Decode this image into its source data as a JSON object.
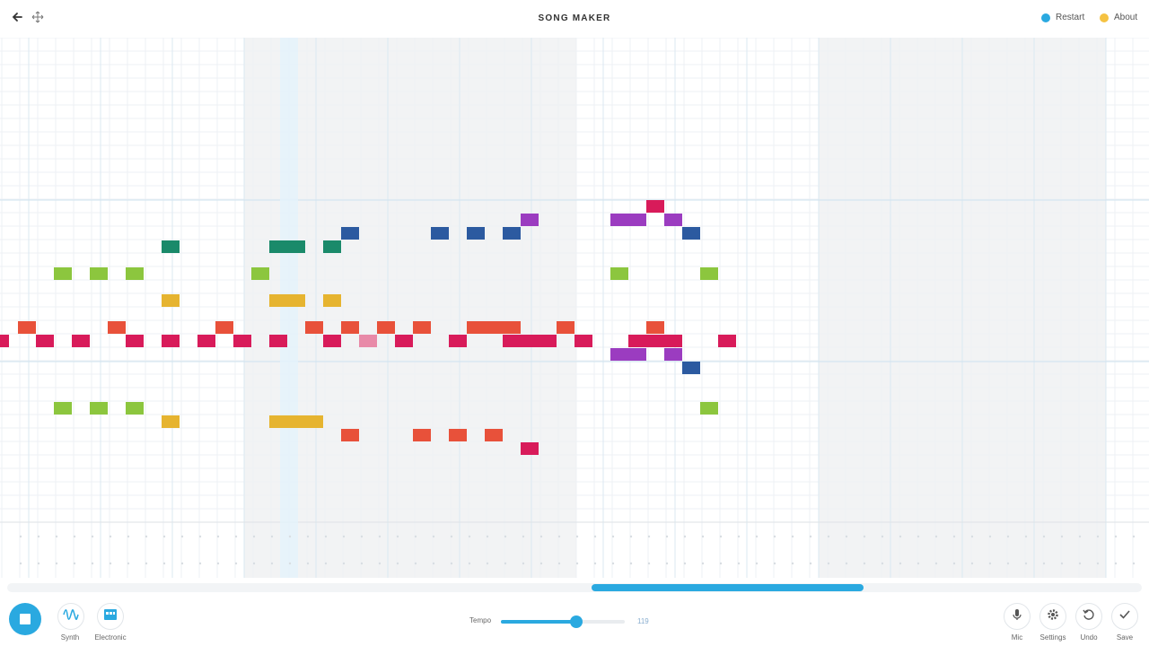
{
  "app": {
    "title": "SONG MAKER"
  },
  "topbar": {
    "restart_label": "Restart",
    "about_label": "About",
    "restart_color": "#2aa9e0",
    "about_color": "#f5c242"
  },
  "toolbar": {
    "instrument_label": "Synth",
    "percussion_label": "Electronic",
    "tempo_label": "Tempo",
    "tempo_value": "119",
    "tempo_fraction": 0.61,
    "mic_label": "Mic",
    "settings_label": "Settings",
    "undo_label": "Undo",
    "save_label": "Save"
  },
  "scroll": {
    "fraction_start": 0.515,
    "fraction_visible": 0.24
  },
  "playhead_column": 16,
  "melody_notes": [
    {
      "col": 0,
      "row": 11,
      "color": "#d81b5a"
    },
    {
      "col": 1,
      "row": 10,
      "color": "#e8513a"
    },
    {
      "col": 2,
      "row": 11,
      "color": "#d81b5a"
    },
    {
      "col": 3,
      "row": 6,
      "color": "#8cc63e"
    },
    {
      "col": 4,
      "row": 11,
      "color": "#d81b5a"
    },
    {
      "col": 5,
      "row": 6,
      "color": "#8cc63e"
    },
    {
      "col": 6,
      "row": 10,
      "color": "#e8513a"
    },
    {
      "col": 7,
      "row": 11,
      "color": "#d81b5a"
    },
    {
      "col": 7,
      "row": 6,
      "color": "#8cc63e"
    },
    {
      "col": 9,
      "row": 11,
      "color": "#d81b5a"
    },
    {
      "col": 9,
      "row": 8,
      "color": "#e6b430"
    },
    {
      "col": 9,
      "row": 4,
      "color": "#1a8a6a"
    },
    {
      "col": 11,
      "row": 11,
      "color": "#d81b5a"
    },
    {
      "col": 12,
      "row": 10,
      "color": "#e8513a"
    },
    {
      "col": 13,
      "row": 11,
      "color": "#d81b5a"
    },
    {
      "col": 14,
      "row": 6,
      "color": "#8cc63e"
    },
    {
      "col": 15,
      "row": 11,
      "color": "#d81b5a"
    },
    {
      "col": 15,
      "row": 8,
      "color": "#e6b430"
    },
    {
      "col": 15,
      "row": 4,
      "color": "#1a8a6a"
    },
    {
      "col": 16,
      "row": 8,
      "color": "#e6b430"
    },
    {
      "col": 16,
      "row": 4,
      "color": "#1a8a6a"
    },
    {
      "col": 17,
      "row": 10,
      "color": "#e8513a"
    },
    {
      "col": 18,
      "row": 11,
      "color": "#d81b5a"
    },
    {
      "col": 18,
      "row": 8,
      "color": "#e6b430"
    },
    {
      "col": 18,
      "row": 4,
      "color": "#1a8a6a"
    },
    {
      "col": 19,
      "row": 10,
      "color": "#e8513a"
    },
    {
      "col": 19,
      "row": 3,
      "color": "#2c5aa0"
    },
    {
      "col": 20,
      "row": 11,
      "color": "#e88aa8"
    },
    {
      "col": 21,
      "row": 10,
      "color": "#e8513a"
    },
    {
      "col": 22,
      "row": 11,
      "color": "#d81b5a"
    },
    {
      "col": 23,
      "row": 10,
      "color": "#e8513a"
    },
    {
      "col": 24,
      "row": 3,
      "color": "#2c5aa0"
    },
    {
      "col": 25,
      "row": 11,
      "color": "#d81b5a"
    },
    {
      "col": 26,
      "row": 10,
      "color": "#e8513a"
    },
    {
      "col": 26,
      "row": 3,
      "color": "#2c5aa0"
    },
    {
      "col": 27,
      "row": 10,
      "color": "#e8513a"
    },
    {
      "col": 28,
      "row": 11,
      "color": "#d81b5a"
    },
    {
      "col": 28,
      "row": 10,
      "color": "#e8513a"
    },
    {
      "col": 28,
      "row": 3,
      "color": "#2c5aa0"
    },
    {
      "col": 29,
      "row": 11,
      "color": "#d81b5a"
    },
    {
      "col": 29,
      "row": 2,
      "color": "#9b3cc0"
    },
    {
      "col": 30,
      "row": 11,
      "color": "#d81b5a"
    },
    {
      "col": 31,
      "row": 10,
      "color": "#e8513a"
    },
    {
      "col": 32,
      "row": 11,
      "color": "#d81b5a"
    },
    {
      "col": 34,
      "row": 12,
      "color": "#9b3cc0"
    },
    {
      "col": 34,
      "row": 6,
      "color": "#8cc63e"
    },
    {
      "col": 34,
      "row": 2,
      "color": "#9b3cc0"
    },
    {
      "col": 35,
      "row": 11,
      "color": "#d81b5a"
    },
    {
      "col": 35,
      "row": 12,
      "color": "#9b3cc0"
    },
    {
      "col": 35,
      "row": 2,
      "color": "#9b3cc0"
    },
    {
      "col": 36,
      "row": 11,
      "color": "#d81b5a"
    },
    {
      "col": 36,
      "row": 10,
      "color": "#e8513a"
    },
    {
      "col": 36,
      "row": 1,
      "color": "#d81b5a"
    },
    {
      "col": 37,
      "row": 11,
      "color": "#d81b5a"
    },
    {
      "col": 37,
      "row": 12,
      "color": "#9b3cc0"
    },
    {
      "col": 37,
      "row": 2,
      "color": "#9b3cc0"
    },
    {
      "col": 38,
      "row": 13,
      "color": "#2c5aa0"
    },
    {
      "col": 38,
      "row": 3,
      "color": "#2c5aa0"
    },
    {
      "col": 39,
      "row": 6,
      "color": "#8cc63e"
    },
    {
      "col": 40,
      "row": 11,
      "color": "#d81b5a"
    },
    {
      "col": 3,
      "row": 16,
      "color": "#8cc63e"
    },
    {
      "col": 5,
      "row": 16,
      "color": "#8cc63e"
    },
    {
      "col": 7,
      "row": 16,
      "color": "#8cc63e"
    },
    {
      "col": 9,
      "row": 17,
      "color": "#e6b430"
    },
    {
      "col": 15,
      "row": 17,
      "color": "#e6b430"
    },
    {
      "col": 16,
      "row": 17,
      "color": "#e6b430"
    },
    {
      "col": 17,
      "row": 17,
      "color": "#e6b430"
    },
    {
      "col": 19,
      "row": 18,
      "color": "#e8513a"
    },
    {
      "col": 23,
      "row": 18,
      "color": "#e8513a"
    },
    {
      "col": 25,
      "row": 18,
      "color": "#e8513a"
    },
    {
      "col": 27,
      "row": 18,
      "color": "#e8513a"
    },
    {
      "col": 29,
      "row": 19,
      "color": "#d81b5a"
    },
    {
      "col": 39,
      "row": 16,
      "color": "#8cc63e"
    }
  ]
}
